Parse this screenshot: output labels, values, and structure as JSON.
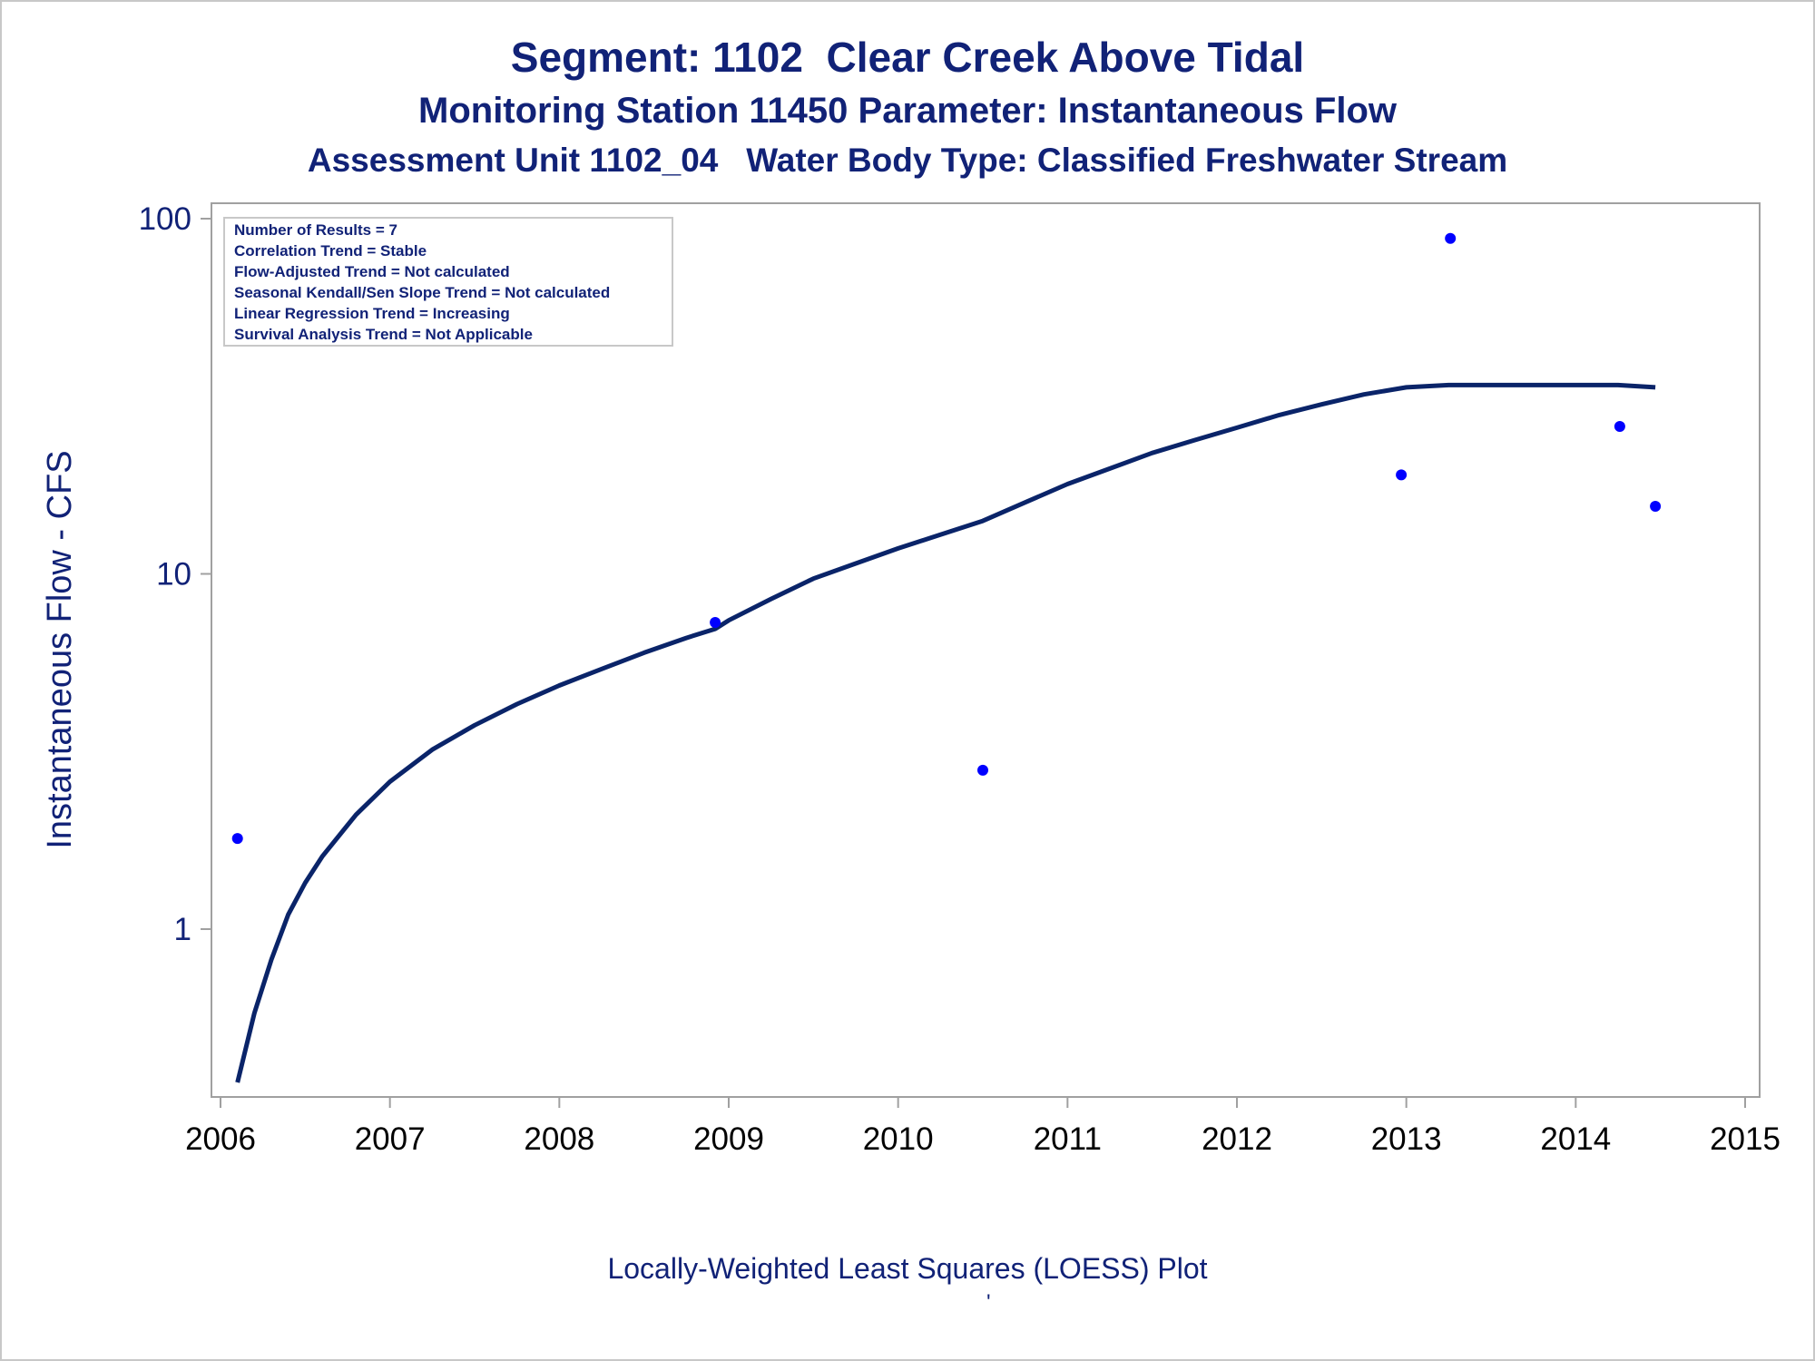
{
  "titles": {
    "line1": "Segment: 1102  Clear Creek Above Tidal",
    "line2": "Monitoring Station 11450 Parameter: Instantaneous Flow",
    "line3": "Assessment Unit 1102_04   Water Body Type: Classified Freshwater Stream"
  },
  "footnote": "Locally-Weighted Least Squares (LOESS) Plot",
  "footnote_mark": "'",
  "stats": [
    "Number of Results = 7",
    "Correlation Trend = Stable",
    "Flow-Adjusted Trend = Not calculated",
    "Seasonal Kendall/Sen Slope Trend = Not calculated",
    "Linear Regression Trend = Increasing",
    "Survival Analysis Trend = Not Applicable"
  ],
  "colors": {
    "title": "#112277",
    "points": "#0000ff",
    "loess_line": "#0a2469",
    "frame": "#a0a0a0"
  },
  "chart_data": {
    "type": "scatter",
    "ylabel": "Instantaneous Flow - CFS",
    "xlabel": "",
    "y_scale": "log",
    "xlim": [
      2006,
      2015
    ],
    "ylim": [
      0.36,
      110
    ],
    "x_ticks": [
      "2006",
      "2007",
      "2008",
      "2009",
      "2010",
      "2011",
      "2012",
      "2013",
      "2014",
      "2015"
    ],
    "y_ticks": [
      "1",
      "10",
      "100"
    ],
    "grid": false,
    "series": [
      {
        "type": "scatter",
        "x": [
          2006.1,
          2008.92,
          2010.5,
          2012.97,
          2013.26,
          2014.26,
          2014.47
        ],
        "y": [
          1.8,
          7.3,
          2.8,
          19.0,
          88.0,
          26.0,
          15.5
        ]
      },
      {
        "type": "line",
        "x": [
          2006.1,
          2006.2,
          2006.3,
          2006.4,
          2006.5,
          2006.6,
          2006.8,
          2007.0,
          2007.25,
          2007.5,
          2007.75,
          2008.0,
          2008.25,
          2008.5,
          2008.75,
          2008.92,
          2009.0,
          2009.25,
          2009.5,
          2009.75,
          2010.0,
          2010.25,
          2010.5,
          2010.75,
          2011.0,
          2011.25,
          2011.5,
          2011.75,
          2012.0,
          2012.25,
          2012.5,
          2012.75,
          2013.0,
          2013.25,
          2013.5,
          2013.75,
          2014.0,
          2014.25,
          2014.47
        ],
        "y": [
          0.37,
          0.58,
          0.82,
          1.1,
          1.35,
          1.6,
          2.1,
          2.6,
          3.2,
          3.75,
          4.3,
          4.85,
          5.4,
          6.0,
          6.6,
          7.0,
          7.4,
          8.5,
          9.7,
          10.7,
          11.8,
          12.9,
          14.1,
          15.9,
          17.9,
          19.8,
          21.9,
          23.8,
          25.8,
          28.0,
          30.0,
          32.0,
          33.5,
          34.0,
          34.0,
          34.0,
          34.0,
          34.0,
          33.5
        ]
      }
    ]
  }
}
